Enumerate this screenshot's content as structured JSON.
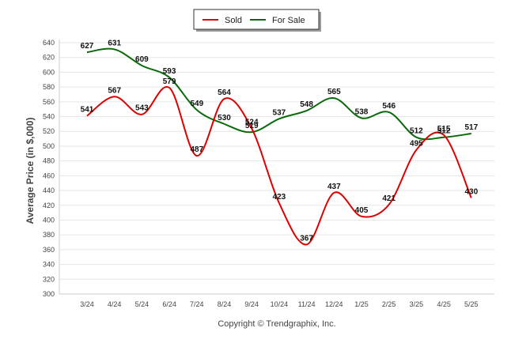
{
  "chart_data": {
    "type": "line",
    "categories": [
      "3/24",
      "4/24",
      "5/24",
      "6/24",
      "7/24",
      "8/24",
      "9/24",
      "10/24",
      "11/24",
      "12/24",
      "1/25",
      "2/25",
      "3/25",
      "4/25",
      "5/25"
    ],
    "series": [
      {
        "name": "Sold",
        "color": "#e00000",
        "values": [
          541,
          567,
          543,
          579,
          487,
          564,
          524,
          423,
          367,
          437,
          405,
          421,
          495,
          515,
          430
        ]
      },
      {
        "name": "For Sale",
        "color": "#0a6a0a",
        "values": [
          627,
          631,
          609,
          593,
          549,
          530,
          519,
          537,
          548,
          565,
          538,
          546,
          512,
          512,
          517
        ]
      }
    ],
    "ylabel": "Average Price (in $,000)",
    "ylim": [
      300,
      640
    ],
    "yticks": [
      300,
      320,
      340,
      360,
      380,
      400,
      420,
      440,
      460,
      480,
      500,
      520,
      540,
      560,
      580,
      600,
      620,
      640
    ],
    "grid": true,
    "legend_position": "top-center"
  },
  "footer": {
    "copyright": "Copyright © Trendgraphix, Inc."
  }
}
